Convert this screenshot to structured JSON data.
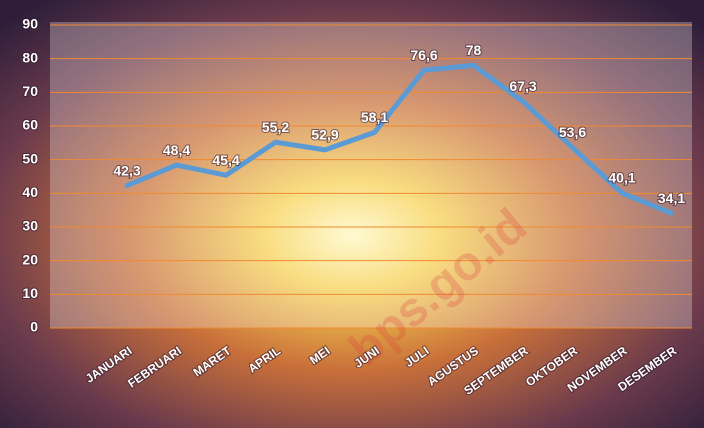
{
  "chart_data": {
    "type": "line",
    "categories": [
      "JANUARI",
      "FEBRUARI",
      "MARET",
      "APRIL",
      "MEI",
      "JUNI",
      "JULI",
      "AGUSTUS",
      "SEPTEMBER",
      "OKTOBER",
      "NOVEMBER",
      "DESEMBER"
    ],
    "series": [
      {
        "name": "",
        "color": "#5b9bd5",
        "values": [
          42.3,
          48.4,
          45.4,
          55.2,
          52.9,
          58.1,
          76.6,
          78,
          67.3,
          53.6,
          40.1,
          34.1
        ],
        "value_labels": [
          "42,3",
          "48,4",
          "45,4",
          "55,2",
          "52,9",
          "58,1",
          "76,6",
          "78",
          "67,3",
          "53,6",
          "40,1",
          "34,1"
        ]
      }
    ],
    "ylim": [
      0,
      90
    ],
    "yticks": [
      0,
      10,
      20,
      30,
      40,
      50,
      60,
      70,
      80,
      90
    ],
    "grid": true,
    "grid_color": "#f08a30",
    "watermark": "bps.go.id"
  }
}
